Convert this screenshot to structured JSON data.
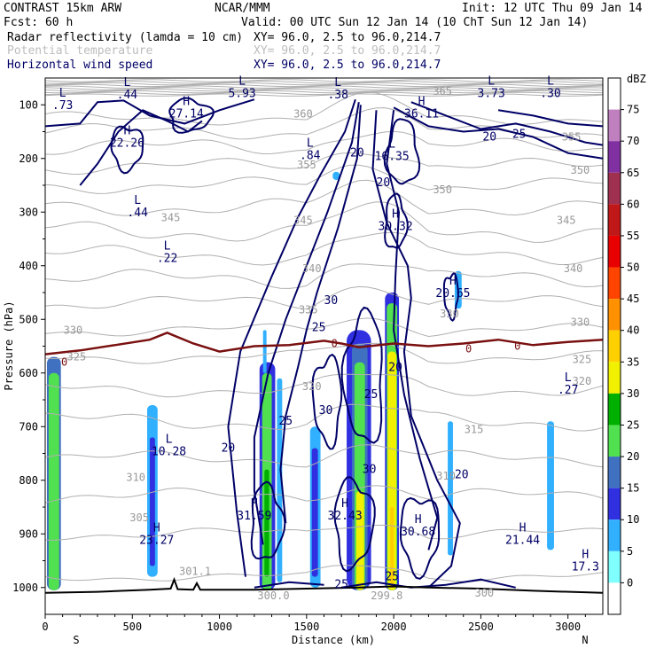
{
  "header": {
    "model": "CONTRAST 15km ARW",
    "org": "NCAR/MMM",
    "init": "Init: 12 UTC Thu 09 Jan 14",
    "fcst": "Fcst:   60 h",
    "valid": "Valid: 00 UTC Sun 12 Jan 14 (10 ChT Sun 12 Jan 14)",
    "fields": [
      {
        "name": "Radar reflectivity (lamda = 10 cm)",
        "xy": "XY=  96.0,  2.5 to  96.0,214.7",
        "color": "#000000"
      },
      {
        "name": "Potential temperature",
        "xy": "XY=  96.0,  2.5 to  96.0,214.7",
        "color": "#bdbdbd"
      },
      {
        "name": "Horizontal wind speed",
        "xy": "XY=  96.0,  2.5 to  96.0,214.7",
        "color": "#000066"
      }
    ]
  },
  "chart_data": {
    "type": "cross-section",
    "xlabel": "Distance (km)",
    "ylabel": "Pressure (hPa)",
    "xlim": [
      0,
      3200
    ],
    "ylim": [
      1050,
      50
    ],
    "x_ticks": [
      "0",
      "500",
      "1000",
      "1500",
      "2000",
      "2500",
      "3000"
    ],
    "y_ticks": [
      "100",
      "200",
      "300",
      "400",
      "500",
      "600",
      "700",
      "800",
      "900",
      "1000"
    ],
    "x_end_labels": {
      "left": "S",
      "right": "N"
    },
    "colorbar": {
      "unit": "dBZ",
      "levels": [
        "75",
        "70",
        "65",
        "60",
        "55",
        "50",
        "45",
        "40",
        "35",
        "30",
        "25",
        "20",
        "15",
        "10",
        "5",
        "0"
      ],
      "colors": [
        "#ffffff",
        "#c080c0",
        "#8030a0",
        "#a03050",
        "#c01818",
        "#e80000",
        "#ff4400",
        "#ff9000",
        "#ffd000",
        "#f0f000",
        "#00b000",
        "#50e050",
        "#4070c0",
        "#3030e0",
        "#30b0ff",
        "#80ffff",
        "#ffffff"
      ]
    },
    "wind_extrema": [
      {
        "type": "L",
        "value": ".44",
        "x": 470,
        "p": 75
      },
      {
        "type": "H",
        "value": "27.14",
        "x": 810,
        "p": 110
      },
      {
        "type": "L",
        "value": "5.93",
        "x": 1130,
        "p": 72
      },
      {
        "type": "L",
        "value": ".38",
        "x": 1680,
        "p": 75
      },
      {
        "type": "H",
        "value": "36.11",
        "x": 2160,
        "p": 110
      },
      {
        "type": "L",
        "value": "3.73",
        "x": 2560,
        "p": 72
      },
      {
        "type": "L",
        "value": ".30",
        "x": 2900,
        "p": 72
      },
      {
        "type": "L",
        "value": ".73",
        "x": 100,
        "p": 95
      },
      {
        "type": "H",
        "value": "22.26",
        "x": 470,
        "p": 165
      },
      {
        "type": "L",
        "value": ".84",
        "x": 1520,
        "p": 188
      },
      {
        "type": "L",
        "value": "16.35",
        "x": 1990,
        "p": 190
      },
      {
        "type": "L",
        "value": ".44",
        "x": 530,
        "p": 295
      },
      {
        "type": "L",
        "value": ".22",
        "x": 700,
        "p": 380
      },
      {
        "type": "H",
        "value": "30.32",
        "x": 2010,
        "p": 320
      },
      {
        "type": "H",
        "value": "20.65",
        "x": 2340,
        "p": 445
      },
      {
        "type": "L",
        "value": ".27",
        "x": 3000,
        "p": 625
      },
      {
        "type": "L",
        "value": "10.28",
        "x": 710,
        "p": 740
      },
      {
        "type": "H",
        "value": "23.27",
        "x": 640,
        "p": 905
      },
      {
        "type": "H",
        "value": "31.59",
        "x": 1200,
        "p": 860
      },
      {
        "type": "H",
        "value": "32.43",
        "x": 1720,
        "p": 860
      },
      {
        "type": "H",
        "value": "30.68",
        "x": 2140,
        "p": 890
      },
      {
        "type": "H",
        "value": "21.44",
        "x": 2740,
        "p": 905
      },
      {
        "type": "H",
        "value": "17.3",
        "x": 3100,
        "p": 955
      }
    ],
    "wind_contour_labels": [
      {
        "v": "20",
        "x": 1790,
        "p": 190
      },
      {
        "v": "20",
        "x": 1940,
        "p": 245
      },
      {
        "v": "20",
        "x": 2550,
        "p": 160
      },
      {
        "v": "25",
        "x": 2720,
        "p": 155
      },
      {
        "v": "30",
        "x": 1640,
        "p": 465
      },
      {
        "v": "25",
        "x": 1570,
        "p": 515
      },
      {
        "v": "30",
        "x": 1610,
        "p": 670
      },
      {
        "v": "25",
        "x": 1380,
        "p": 690
      },
      {
        "v": "20",
        "x": 1050,
        "p": 740
      },
      {
        "v": "25",
        "x": 1870,
        "p": 640
      },
      {
        "v": "20",
        "x": 2010,
        "p": 590
      },
      {
        "v": "30",
        "x": 1860,
        "p": 780
      },
      {
        "v": "20",
        "x": 2390,
        "p": 790
      },
      {
        "v": "25",
        "x": 1700,
        "p": 995
      },
      {
        "v": "25",
        "x": 1990,
        "p": 980
      }
    ],
    "theta_labels": [
      {
        "v": "360",
        "x": 1480,
        "p": 117
      },
      {
        "v": "355",
        "x": 1500,
        "p": 212
      },
      {
        "v": "350",
        "x": 2280,
        "p": 258
      },
      {
        "v": "345",
        "x": 720,
        "p": 310
      },
      {
        "v": "345",
        "x": 1480,
        "p": 315
      },
      {
        "v": "340",
        "x": 1530,
        "p": 405
      },
      {
        "v": "335",
        "x": 1510,
        "p": 482
      },
      {
        "v": "330",
        "x": 160,
        "p": 520
      },
      {
        "v": "325",
        "x": 180,
        "p": 570
      },
      {
        "v": "320",
        "x": 1530,
        "p": 625
      },
      {
        "v": "315",
        "x": 2460,
        "p": 705
      },
      {
        "v": "310",
        "x": 520,
        "p": 795
      },
      {
        "v": "305",
        "x": 540,
        "p": 870
      },
      {
        "v": "301.1",
        "x": 860,
        "p": 970
      },
      {
        "v": "300",
        "x": 2520,
        "p": 1010
      },
      {
        "v": "330",
        "x": 3070,
        "p": 505
      },
      {
        "v": "325",
        "x": 3080,
        "p": 575
      },
      {
        "v": "320",
        "x": 3080,
        "p": 615
      },
      {
        "v": "310",
        "x": 2300,
        "p": 792
      },
      {
        "v": "365",
        "x": 2280,
        "p": 75
      },
      {
        "v": "355",
        "x": 3020,
        "p": 160
      },
      {
        "v": "350",
        "x": 3070,
        "p": 222
      },
      {
        "v": "345",
        "x": 2990,
        "p": 315
      },
      {
        "v": "340",
        "x": 3030,
        "p": 405
      },
      {
        "v": "330",
        "x": 2320,
        "p": 490
      },
      {
        "v": "300.0",
        "x": 1310,
        "p": 1015
      },
      {
        "v": "299.8",
        "x": 1960,
        "p": 1015
      }
    ],
    "freezing_level_labels": [
      {
        "v": "0",
        "x": 110,
        "p": 580
      },
      {
        "v": "0",
        "x": 1660,
        "p": 545
      },
      {
        "v": "0",
        "x": 2430,
        "p": 555
      },
      {
        "v": "0",
        "x": 2710,
        "p": 550
      }
    ],
    "reflectivity_cells": [
      {
        "x1": 10,
        "x2": 90,
        "p_top": 570,
        "p_bot": 1005,
        "dbz": 15
      },
      {
        "x1": 20,
        "x2": 80,
        "p_top": 600,
        "p_bot": 1005,
        "dbz": 20
      },
      {
        "x1": 585,
        "x2": 645,
        "p_top": 660,
        "p_bot": 980,
        "dbz": 5
      },
      {
        "x1": 600,
        "x2": 630,
        "p_top": 720,
        "p_bot": 960,
        "dbz": 10
      },
      {
        "x1": 1230,
        "x2": 1320,
        "p_top": 580,
        "p_bot": 1005,
        "dbz": 10
      },
      {
        "x1": 1245,
        "x2": 1300,
        "p_top": 600,
        "p_bot": 1005,
        "dbz": 20
      },
      {
        "x1": 1258,
        "x2": 1285,
        "p_top": 780,
        "p_bot": 980,
        "dbz": 25
      },
      {
        "x1": 1250,
        "x2": 1270,
        "p_top": 520,
        "p_bot": 600,
        "dbz": 5
      },
      {
        "x1": 1330,
        "x2": 1360,
        "p_top": 610,
        "p_bot": 990,
        "dbz": 5
      },
      {
        "x1": 1520,
        "x2": 1580,
        "p_top": 700,
        "p_bot": 1000,
        "dbz": 5
      },
      {
        "x1": 1530,
        "x2": 1565,
        "p_top": 740,
        "p_bot": 980,
        "dbz": 10
      },
      {
        "x1": 1650,
        "x2": 1690,
        "p_top": 225,
        "p_bot": 240,
        "dbz": 5
      },
      {
        "x1": 1730,
        "x2": 1870,
        "p_top": 520,
        "p_bot": 1005,
        "dbz": 10
      },
      {
        "x1": 1760,
        "x2": 1850,
        "p_top": 545,
        "p_bot": 1005,
        "dbz": 15
      },
      {
        "x1": 1775,
        "x2": 1835,
        "p_top": 580,
        "p_bot": 1005,
        "dbz": 20
      },
      {
        "x1": 1785,
        "x2": 1830,
        "p_top": 820,
        "p_bot": 1005,
        "dbz": 30
      },
      {
        "x1": 1950,
        "x2": 2030,
        "p_top": 450,
        "p_bot": 1005,
        "dbz": 10
      },
      {
        "x1": 1960,
        "x2": 2020,
        "p_top": 470,
        "p_bot": 1005,
        "dbz": 20
      },
      {
        "x1": 1965,
        "x2": 2015,
        "p_top": 560,
        "p_bot": 1005,
        "dbz": 30
      },
      {
        "x1": 1980,
        "x2": 2000,
        "p_top": 850,
        "p_bot": 1000,
        "dbz": 35
      },
      {
        "x1": 2310,
        "x2": 2340,
        "p_top": 690,
        "p_bot": 940,
        "dbz": 5
      },
      {
        "x1": 2350,
        "x2": 2390,
        "p_top": 410,
        "p_bot": 480,
        "dbz": 5
      },
      {
        "x1": 2880,
        "x2": 2920,
        "p_top": 690,
        "p_bot": 930,
        "dbz": 5
      }
    ],
    "freezing_level": [
      [
        0,
        565
      ],
      [
        200,
        558
      ],
      [
        400,
        548
      ],
      [
        600,
        538
      ],
      [
        700,
        525
      ],
      [
        850,
        545
      ],
      [
        1000,
        560
      ],
      [
        1200,
        550
      ],
      [
        1400,
        548
      ],
      [
        1600,
        540
      ],
      [
        1700,
        545
      ],
      [
        1800,
        552
      ],
      [
        2000,
        545
      ],
      [
        2200,
        550
      ],
      [
        2400,
        545
      ],
      [
        2600,
        538
      ],
      [
        2800,
        548
      ],
      [
        3000,
        542
      ],
      [
        3200,
        538
      ]
    ]
  }
}
